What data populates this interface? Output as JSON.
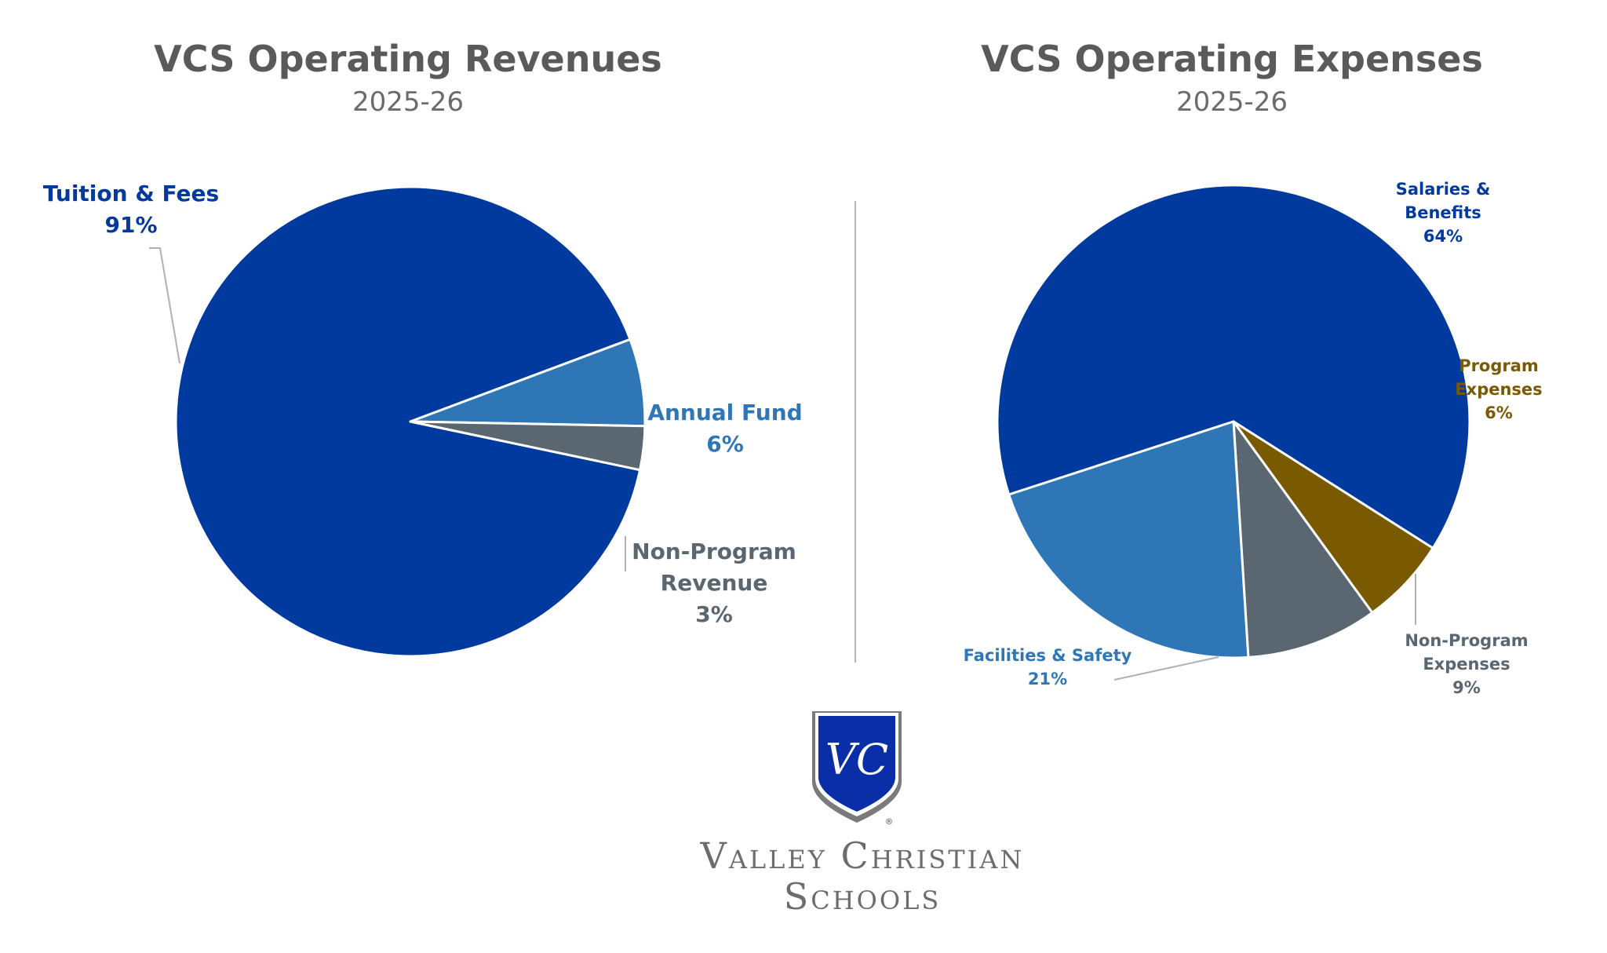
{
  "colors": {
    "dark_blue": "#003a9e",
    "mid_blue": "#2f76b6",
    "slate": "#5a6670",
    "gold": "#7a5a00",
    "title_gray": "#5a5a5c"
  },
  "revenues": {
    "title": "VCS Operating Revenues",
    "subtitle": "2025-26"
  },
  "expenses": {
    "title": "VCS Operating Expenses",
    "subtitle": "2025-26"
  },
  "chart_data": [
    {
      "type": "pie",
      "title": "VCS Operating Revenues",
      "subtitle": "2025-26",
      "slices": [
        {
          "label_lines": [
            "Tuition & Fees"
          ],
          "pct_label": "91%",
          "value": 91,
          "color": "#003a9e"
        },
        {
          "label_lines": [
            "Annual Fund"
          ],
          "pct_label": "6%",
          "value": 6,
          "color": "#2f76b6"
        },
        {
          "label_lines": [
            "Non-Program",
            "Revenue"
          ],
          "pct_label": "3%",
          "value": 3,
          "color": "#5a6670"
        }
      ]
    },
    {
      "type": "pie",
      "title": "VCS Operating Expenses",
      "subtitle": "2025-26",
      "slices": [
        {
          "label_lines": [
            "Salaries &",
            "Benefits"
          ],
          "pct_label": "64%",
          "value": 64,
          "color": "#003a9e"
        },
        {
          "label_lines": [
            "Program",
            "Expenses"
          ],
          "pct_label": "6%",
          "value": 6,
          "color": "#7a5a00"
        },
        {
          "label_lines": [
            "Non-Program",
            "Expenses"
          ],
          "pct_label": "9%",
          "value": 9,
          "color": "#5a6670"
        },
        {
          "label_lines": [
            "Facilities & Safety"
          ],
          "pct_label": "21%",
          "value": 21,
          "color": "#2f76b6"
        }
      ]
    }
  ],
  "logo": {
    "monogram": "VC",
    "registered": "®",
    "name_line1": "Valley Christian",
    "name_line2": "Schools"
  }
}
